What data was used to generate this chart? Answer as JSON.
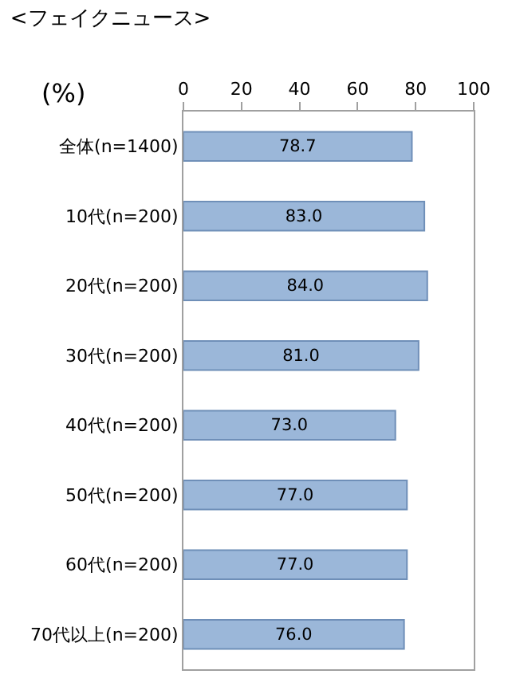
{
  "chart_data": {
    "type": "bar",
    "orientation": "horizontal",
    "title": "<フェイクニュース>",
    "xlabel": "(%)",
    "categories": [
      "全体(n=1400)",
      "10代(n=200)",
      "20代(n=200)",
      "30代(n=200)",
      "40代(n=200)",
      "50代(n=200)",
      "60代(n=200)",
      "70代以上(n=200)"
    ],
    "values": [
      78.7,
      83.0,
      84.0,
      81.0,
      73.0,
      77.0,
      77.0,
      76.0
    ],
    "value_labels": [
      "78.7",
      "83.0",
      "84.0",
      "81.0",
      "73.0",
      "77.0",
      "77.0",
      "76.0"
    ],
    "color": "#9bb7d9",
    "xlim": [
      0,
      100
    ],
    "xticks": [
      0,
      20,
      40,
      60,
      80,
      100
    ],
    "grid": false,
    "legend": false
  }
}
